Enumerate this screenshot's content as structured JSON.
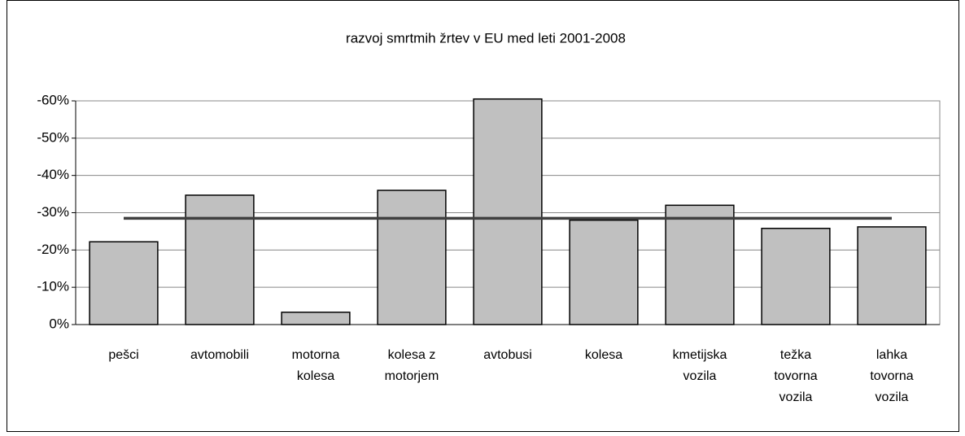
{
  "chart_data": {
    "type": "bar",
    "title": "razvoj smrtmih žrtev v EU med leti 2001-2008",
    "categories": [
      "pešci",
      "avtomobili",
      "motorna\nkolesa",
      "kolesa z\nmotorjem",
      "avtobusi",
      "kolesa",
      "kmetijska\nvozila",
      "težka\ntovorna\nvozila",
      "lahka\ntovorna\nvozila"
    ],
    "values": [
      -22.2,
      -34.7,
      -3.3,
      -36,
      -60.5,
      -28,
      -32,
      -25.8,
      -26.2
    ],
    "color": "#c0c0c0",
    "reference_line": -28.5,
    "reference_color": "#404040",
    "ylim": [
      0,
      -60
    ],
    "yticks": [
      {
        "value": 0,
        "label": "0%"
      },
      {
        "value": -10,
        "label": "-10%"
      },
      {
        "value": -20,
        "label": "-20%"
      },
      {
        "value": -30,
        "label": "-30%"
      },
      {
        "value": -40,
        "label": "-40%"
      },
      {
        "value": -50,
        "label": "-50%"
      },
      {
        "value": -60,
        "label": "-60%"
      }
    ],
    "grid": true
  }
}
